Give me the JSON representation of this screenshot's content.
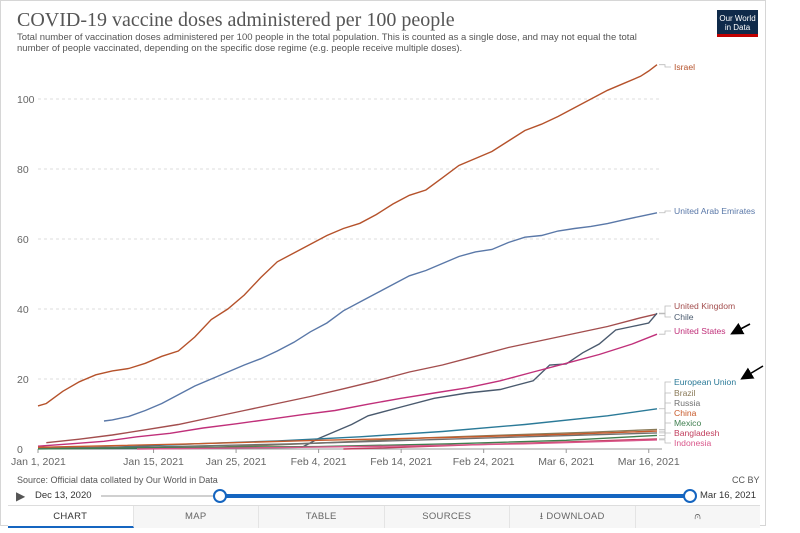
{
  "header": {
    "title": "COVID-19 vaccine doses administered per 100 people",
    "subtitle": "Total number of vaccination doses administered per 100 people in the total population. This is counted as a single dose, and may not equal the total number of people vaccinated, depending on the specific dose regime (e.g. people receive multiple doses).",
    "logo_line1": "Our World",
    "logo_line2": "in Data"
  },
  "footer": {
    "source": "Source: Official data collated by Our World in Data",
    "license": "CC BY"
  },
  "timeline": {
    "play_icon": "play-icon",
    "start_label": "Dec 13, 2020",
    "end_label": "Mar 16, 2021",
    "selected_start_fraction": 0.2,
    "selected_end_fraction": 1.0
  },
  "tabs": [
    {
      "label": "CHART",
      "icon": "",
      "active": true
    },
    {
      "label": "MAP",
      "icon": "",
      "active": false
    },
    {
      "label": "TABLE",
      "icon": "",
      "active": false
    },
    {
      "label": "SOURCES",
      "icon": "",
      "active": false
    },
    {
      "label": "DOWNLOAD",
      "icon": "download-icon",
      "active": false
    },
    {
      "label": "",
      "icon": "share-icon",
      "active": false
    }
  ],
  "chart_data": {
    "type": "line",
    "title": "COVID-19 vaccine doses administered per 100 people",
    "xlabel": "",
    "ylabel": "",
    "x_range": [
      "2021-01-01",
      "2021-03-16"
    ],
    "xticks": [
      "Jan 1, 2021",
      "Jan 15, 2021",
      "Jan 25, 2021",
      "Feb 4, 2021",
      "Feb 14, 2021",
      "Feb 24, 2021",
      "Mar 6, 2021",
      "Mar 16, 2021"
    ],
    "xtick_dates": [
      "2021-01-01",
      "2021-01-15",
      "2021-01-25",
      "2021-02-04",
      "2021-02-14",
      "2021-02-24",
      "2021-03-06",
      "2021-03-16"
    ],
    "ylim": [
      0,
      110
    ],
    "yticks": [
      0,
      20,
      40,
      60,
      80,
      100
    ],
    "grid": "horizontal-dashed",
    "legend": "right, labels at line ends",
    "annotations": [
      "black arrow pointing to United States",
      "black arrow pointing to European Union"
    ],
    "series": [
      {
        "name": "Israel",
        "color": "#b5522b",
        "points": [
          [
            "2021-01-01",
            12.3
          ],
          [
            "2021-01-02",
            13
          ],
          [
            "2021-01-04",
            16.5
          ],
          [
            "2021-01-06",
            19.2
          ],
          [
            "2021-01-08",
            21.2
          ],
          [
            "2021-01-10",
            22.3
          ],
          [
            "2021-01-12",
            23
          ],
          [
            "2021-01-14",
            24.5
          ],
          [
            "2021-01-16",
            26.5
          ],
          [
            "2021-01-18",
            28
          ],
          [
            "2021-01-20",
            32
          ],
          [
            "2021-01-22",
            37
          ],
          [
            "2021-01-24",
            40
          ],
          [
            "2021-01-26",
            44
          ],
          [
            "2021-01-28",
            49
          ],
          [
            "2021-01-30",
            53.5
          ],
          [
            "2021-02-01",
            56
          ],
          [
            "2021-02-03",
            58.5
          ],
          [
            "2021-02-05",
            61
          ],
          [
            "2021-02-07",
            63
          ],
          [
            "2021-02-09",
            64.5
          ],
          [
            "2021-02-11",
            67
          ],
          [
            "2021-02-13",
            70
          ],
          [
            "2021-02-15",
            72.5
          ],
          [
            "2021-02-17",
            74
          ],
          [
            "2021-02-19",
            77.5
          ],
          [
            "2021-02-21",
            81
          ],
          [
            "2021-02-23",
            83
          ],
          [
            "2021-02-25",
            85
          ],
          [
            "2021-02-27",
            88
          ],
          [
            "2021-03-01",
            91
          ],
          [
            "2021-03-03",
            92.8
          ],
          [
            "2021-03-05",
            95
          ],
          [
            "2021-03-07",
            97.5
          ],
          [
            "2021-03-09",
            100
          ],
          [
            "2021-03-11",
            102.5
          ],
          [
            "2021-03-13",
            104.5
          ],
          [
            "2021-03-15",
            106.5
          ],
          [
            "2021-03-16",
            108
          ],
          [
            "2021-03-17",
            109.8
          ]
        ]
      },
      {
        "name": "United Arab Emirates",
        "color": "#5a78a8",
        "points": [
          [
            "2021-01-09",
            8
          ],
          [
            "2021-01-10",
            8.3
          ],
          [
            "2021-01-12",
            9.3
          ],
          [
            "2021-01-14",
            11
          ],
          [
            "2021-01-16",
            13
          ],
          [
            "2021-01-18",
            15.5
          ],
          [
            "2021-01-20",
            18
          ],
          [
            "2021-01-22",
            20
          ],
          [
            "2021-01-24",
            22
          ],
          [
            "2021-01-26",
            24
          ],
          [
            "2021-01-28",
            25.8
          ],
          [
            "2021-01-30",
            28
          ],
          [
            "2021-02-01",
            30.5
          ],
          [
            "2021-02-03",
            33.5
          ],
          [
            "2021-02-05",
            36
          ],
          [
            "2021-02-07",
            39.5
          ],
          [
            "2021-02-09",
            42
          ],
          [
            "2021-02-11",
            44.5
          ],
          [
            "2021-02-13",
            47
          ],
          [
            "2021-02-15",
            49.5
          ],
          [
            "2021-02-17",
            51
          ],
          [
            "2021-02-19",
            53
          ],
          [
            "2021-02-21",
            55
          ],
          [
            "2021-02-23",
            56.3
          ],
          [
            "2021-02-25",
            57
          ],
          [
            "2021-02-27",
            59
          ],
          [
            "2021-03-01",
            60.5
          ],
          [
            "2021-03-03",
            61
          ],
          [
            "2021-03-05",
            62.3
          ],
          [
            "2021-03-07",
            63
          ],
          [
            "2021-03-09",
            63.6
          ],
          [
            "2021-03-11",
            64.4
          ],
          [
            "2021-03-13",
            65.5
          ],
          [
            "2021-03-15",
            66.5
          ],
          [
            "2021-03-17",
            67.5
          ]
        ]
      },
      {
        "name": "United Kingdom",
        "color": "#a34e4e",
        "points": [
          [
            "2021-01-02",
            1.8
          ],
          [
            "2021-01-06",
            2.8
          ],
          [
            "2021-01-10",
            4
          ],
          [
            "2021-01-14",
            5.5
          ],
          [
            "2021-01-18",
            7
          ],
          [
            "2021-01-22",
            9
          ],
          [
            "2021-01-26",
            11
          ],
          [
            "2021-01-30",
            13
          ],
          [
            "2021-02-03",
            15
          ],
          [
            "2021-02-07",
            17.2
          ],
          [
            "2021-02-11",
            19.5
          ],
          [
            "2021-02-15",
            22
          ],
          [
            "2021-02-19",
            24
          ],
          [
            "2021-02-23",
            26.5
          ],
          [
            "2021-02-27",
            29
          ],
          [
            "2021-03-03",
            31
          ],
          [
            "2021-03-07",
            33
          ],
          [
            "2021-03-11",
            35
          ],
          [
            "2021-03-15",
            37.5
          ],
          [
            "2021-03-17",
            38.6
          ]
        ]
      },
      {
        "name": "Chile",
        "color": "#4a5a6e",
        "points": [
          [
            "2021-01-01",
            0.05
          ],
          [
            "2021-01-20",
            0.2
          ],
          [
            "2021-02-02",
            0.5
          ],
          [
            "2021-02-04",
            3
          ],
          [
            "2021-02-06",
            5
          ],
          [
            "2021-02-08",
            7
          ],
          [
            "2021-02-10",
            9.5
          ],
          [
            "2021-02-14",
            12
          ],
          [
            "2021-02-18",
            14.5
          ],
          [
            "2021-02-22",
            16
          ],
          [
            "2021-02-26",
            17
          ],
          [
            "2021-03-02",
            19.5
          ],
          [
            "2021-03-04",
            24
          ],
          [
            "2021-03-06",
            24.3
          ],
          [
            "2021-03-08",
            27.5
          ],
          [
            "2021-03-10",
            30
          ],
          [
            "2021-03-12",
            34
          ],
          [
            "2021-03-14",
            35
          ],
          [
            "2021-03-16",
            36
          ],
          [
            "2021-03-17",
            38.8
          ]
        ]
      },
      {
        "name": "United States",
        "color": "#c0307a",
        "points": [
          [
            "2021-01-01",
            0.8
          ],
          [
            "2021-01-05",
            1.5
          ],
          [
            "2021-01-09",
            2.2
          ],
          [
            "2021-01-13",
            3.5
          ],
          [
            "2021-01-17",
            4.5
          ],
          [
            "2021-01-21",
            6
          ],
          [
            "2021-01-25",
            7.2
          ],
          [
            "2021-01-29",
            8.5
          ],
          [
            "2021-02-02",
            9.8
          ],
          [
            "2021-02-06",
            11
          ],
          [
            "2021-02-10",
            12.8
          ],
          [
            "2021-02-14",
            14.5
          ],
          [
            "2021-02-18",
            16
          ],
          [
            "2021-02-22",
            17.5
          ],
          [
            "2021-02-26",
            19.5
          ],
          [
            "2021-03-02",
            22
          ],
          [
            "2021-03-06",
            24.5
          ],
          [
            "2021-03-10",
            27
          ],
          [
            "2021-03-14",
            30
          ],
          [
            "2021-03-17",
            32.8
          ]
        ]
      },
      {
        "name": "European Union",
        "color": "#2b7a98",
        "points": [
          [
            "2021-01-01",
            0.1
          ],
          [
            "2021-01-10",
            0.5
          ],
          [
            "2021-01-20",
            1.5
          ],
          [
            "2021-01-30",
            2.3
          ],
          [
            "2021-02-09",
            3.5
          ],
          [
            "2021-02-19",
            5
          ],
          [
            "2021-03-01",
            7
          ],
          [
            "2021-03-11",
            9.5
          ],
          [
            "2021-03-17",
            11.5
          ]
        ]
      },
      {
        "name": "Brazil",
        "color": "#8a7a58",
        "points": [
          [
            "2021-01-18",
            0.1
          ],
          [
            "2021-01-28",
            1
          ],
          [
            "2021-02-07",
            2
          ],
          [
            "2021-02-17",
            3.2
          ],
          [
            "2021-02-27",
            4
          ],
          [
            "2021-03-09",
            4.8
          ],
          [
            "2021-03-17",
            5.6
          ]
        ]
      },
      {
        "name": "Russia",
        "color": "#707070",
        "points": [
          [
            "2021-01-01",
            0.3
          ],
          [
            "2021-01-15",
            0.6
          ],
          [
            "2021-02-01",
            1.5
          ],
          [
            "2021-02-15",
            2.5
          ],
          [
            "2021-03-01",
            3.5
          ],
          [
            "2021-03-17",
            4.6
          ]
        ]
      },
      {
        "name": "China",
        "color": "#c85a2a",
        "points": [
          [
            "2021-01-01",
            0.5
          ],
          [
            "2021-01-20",
            1.5
          ],
          [
            "2021-02-04",
            2.5
          ],
          [
            "2021-02-20",
            3.3
          ],
          [
            "2021-03-06",
            4.2
          ],
          [
            "2021-03-17",
            5.1
          ]
        ]
      },
      {
        "name": "Mexico",
        "color": "#3f7f4f",
        "points": [
          [
            "2021-01-01",
            0.02
          ],
          [
            "2021-01-20",
            0.5
          ],
          [
            "2021-02-04",
            0.7
          ],
          [
            "2021-02-20",
            1.5
          ],
          [
            "2021-03-06",
            2.5
          ],
          [
            "2021-03-17",
            3.9
          ]
        ]
      },
      {
        "name": "Bangladesh",
        "color": "#c2405f",
        "points": [
          [
            "2021-02-07",
            0.01
          ],
          [
            "2021-02-14",
            0.5
          ],
          [
            "2021-02-24",
            1.3
          ],
          [
            "2021-03-06",
            2
          ],
          [
            "2021-03-17",
            2.9
          ]
        ]
      },
      {
        "name": "Indonesia",
        "color": "#d9578b",
        "points": [
          [
            "2021-01-13",
            0.01
          ],
          [
            "2021-01-30",
            0.4
          ],
          [
            "2021-02-15",
            0.9
          ],
          [
            "2021-03-01",
            1.5
          ],
          [
            "2021-03-17",
            2.6
          ]
        ]
      }
    ],
    "end_labels": [
      "Israel",
      "United Arab Emirates",
      "United Kingdom",
      "Chile",
      "United States",
      "European Union",
      "Brazil",
      "Russia",
      "China",
      "Mexico",
      "Bangladesh",
      "Indonesia"
    ]
  }
}
